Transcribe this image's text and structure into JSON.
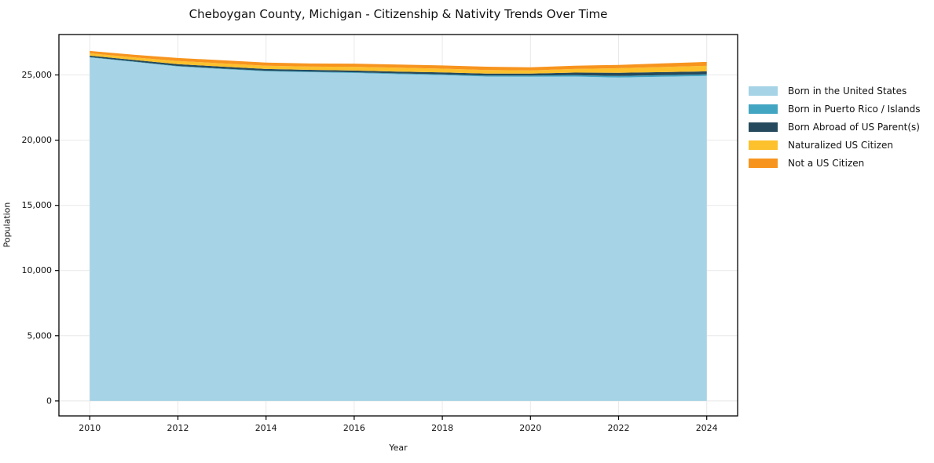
{
  "title": "Cheboygan County, Michigan - Citizenship & Nativity Trends Over Time",
  "chart_data": {
    "type": "area",
    "stacked": true,
    "title": "Cheboygan County, Michigan - Citizenship & Nativity Trends Over Time",
    "xlabel": "Year",
    "ylabel": "Population",
    "grid": true,
    "legend_position": "right-outside",
    "x": [
      2010,
      2011,
      2012,
      2013,
      2014,
      2015,
      2016,
      2017,
      2018,
      2019,
      2020,
      2021,
      2022,
      2023,
      2024
    ],
    "series": [
      {
        "name": "Born in the United States",
        "color": "#a6d3e6",
        "values": [
          26340,
          26000,
          25650,
          25450,
          25280,
          25210,
          25150,
          25060,
          24980,
          24880,
          24860,
          24880,
          24800,
          24860,
          24920
        ]
      },
      {
        "name": "Born in Puerto Rico / Islands",
        "color": "#42a5c2",
        "values": [
          30,
          30,
          35,
          40,
          45,
          50,
          55,
          60,
          70,
          80,
          90,
          100,
          120,
          120,
          120
        ]
      },
      {
        "name": "Born Abroad of US Parent(s)",
        "color": "#254a5d",
        "values": [
          110,
          120,
          145,
          150,
          135,
          130,
          130,
          140,
          150,
          150,
          160,
          200,
          240,
          240,
          240
        ]
      },
      {
        "name": "Naturalized US Citizen",
        "color": "#fcc12d",
        "values": [
          180,
          200,
          240,
          250,
          250,
          250,
          290,
          300,
          280,
          270,
          240,
          280,
          360,
          390,
          420
        ]
      },
      {
        "name": "Not a US Citizen",
        "color": "#f7941e",
        "values": [
          180,
          200,
          230,
          240,
          240,
          240,
          240,
          240,
          250,
          250,
          240,
          250,
          250,
          280,
          300
        ]
      }
    ],
    "xticks": [
      2010,
      2012,
      2014,
      2016,
      2018,
      2020,
      2022,
      2024
    ],
    "xtick_labels": [
      "2010",
      "2012",
      "2014",
      "2016",
      "2018",
      "2020",
      "2022",
      "2024"
    ],
    "yticks": [
      0,
      5000,
      10000,
      15000,
      20000,
      25000
    ],
    "ytick_labels": [
      "0",
      "5,000",
      "10,000",
      "15,000",
      "20,000",
      "25,000"
    ],
    "xlim": [
      2009.3,
      2024.7
    ],
    "ylim": [
      -1150,
      28100
    ],
    "grid_color": "#e8e8e8",
    "spine_color": "#000000",
    "tick_color": "#000000"
  }
}
